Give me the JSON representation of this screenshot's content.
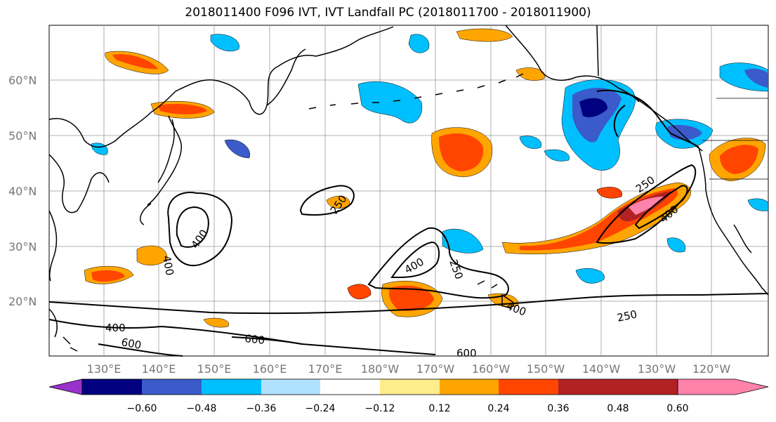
{
  "title": "2018011400 F096 IVT, IVT Landfall PC (2018011700 - 2018011900)",
  "lat_labels": [
    "60°N",
    "50°N",
    "40°N",
    "30°N",
    "20°N"
  ],
  "lon_labels": [
    "130°E",
    "140°E",
    "150°E",
    "160°E",
    "170°E",
    "180°W",
    "170°W",
    "160°W",
    "150°W",
    "140°W",
    "130°W",
    "120°W"
  ],
  "contour_labels": [
    "250",
    "250",
    "250",
    "250",
    "400",
    "400",
    "400",
    "400",
    "400",
    "400",
    "600",
    "600",
    "600"
  ],
  "colorbar": {
    "colors": [
      "#9932cc",
      "#000080",
      "#3a5bc9",
      "#00bfff",
      "#b0e2ff",
      "#ffffff",
      "#ffec8b",
      "#ffa500",
      "#ff4500",
      "#b22222",
      "#ff82ab"
    ],
    "tick_labels": [
      "−0.60",
      "−0.48",
      "−0.36",
      "−0.24",
      "−0.12",
      "0.12",
      "0.24",
      "0.36",
      "0.48",
      "0.60"
    ]
  }
}
